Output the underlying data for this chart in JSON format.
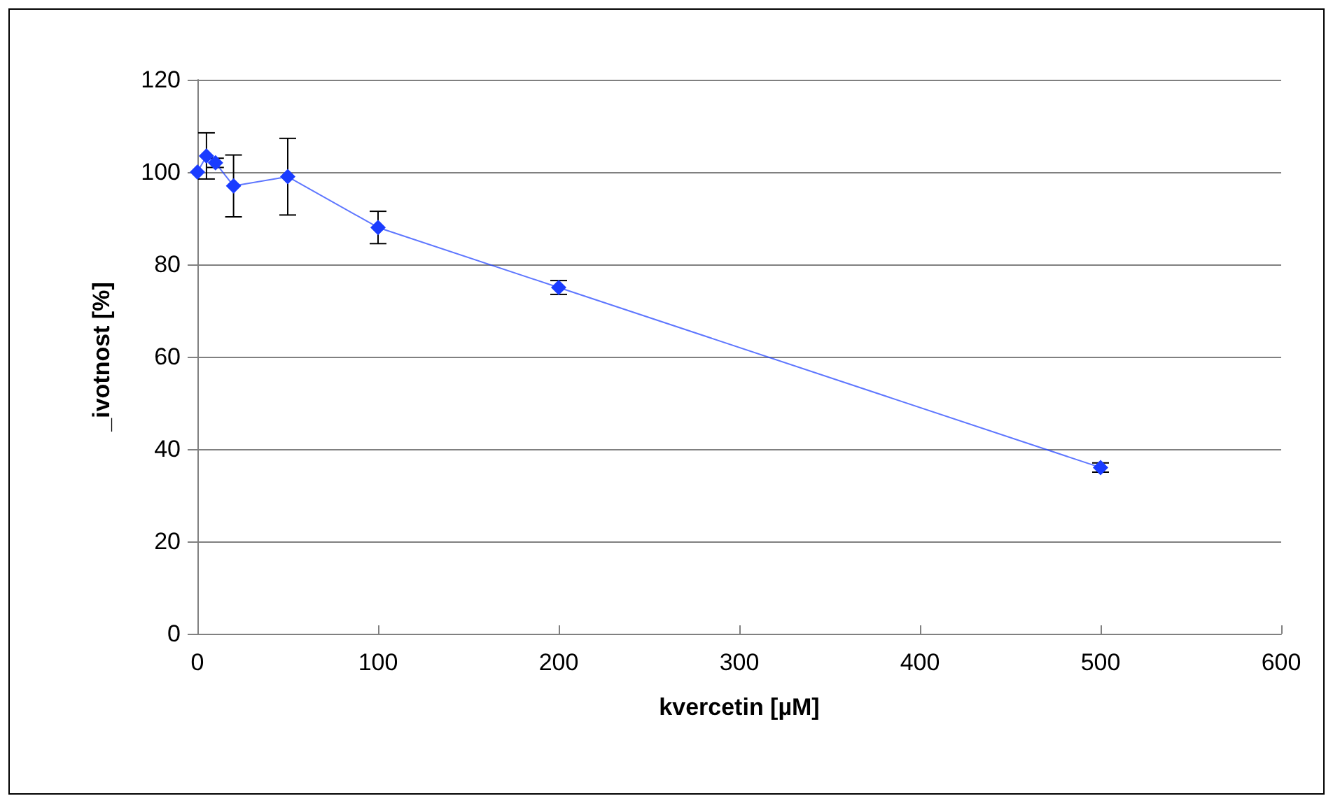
{
  "chart_data": {
    "type": "line",
    "xlabel": "kvercetin [µM]",
    "ylabel": "_ivotnost [%]",
    "x": [
      0,
      5,
      10,
      20,
      50,
      100,
      200,
      500
    ],
    "series": [
      {
        "color": "#1a3cff",
        "values": [
          100,
          103.5,
          102,
          97,
          99,
          88,
          75,
          36
        ],
        "errors": [
          null,
          5,
          1,
          6.7,
          8.3,
          3.5,
          1.5,
          1
        ]
      }
    ],
    "xlim": [
      0,
      600
    ],
    "xticks": [
      0,
      100,
      200,
      300,
      400,
      500,
      600
    ],
    "ylim": [
      0,
      120
    ],
    "yticks": [
      0,
      20,
      40,
      60,
      80,
      100,
      120
    ],
    "grid": "y",
    "marker": "diamond",
    "line_style": "solid"
  }
}
